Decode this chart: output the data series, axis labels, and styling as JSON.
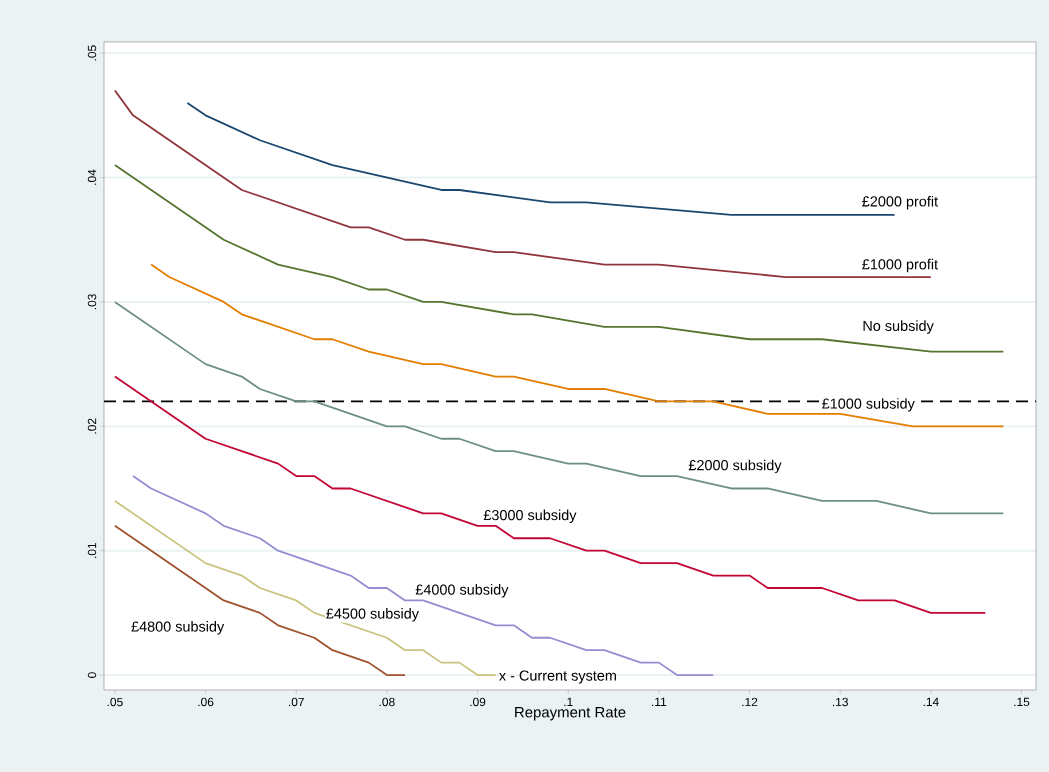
{
  "chart_data": {
    "type": "line",
    "xlabel": "Repayment Rate",
    "xlim": [
      0.0488,
      0.1516
    ],
    "ylim": [
      -0.0012,
      0.0509
    ],
    "xticks": [
      {
        "value": 0.05,
        "label": ".05"
      },
      {
        "value": 0.06,
        "label": ".06"
      },
      {
        "value": 0.07,
        "label": ".07"
      },
      {
        "value": 0.08,
        "label": ".08"
      },
      {
        "value": 0.09,
        "label": ".09"
      },
      {
        "value": 0.1,
        "label": ".1"
      },
      {
        "value": 0.11,
        "label": ".11"
      },
      {
        "value": 0.12,
        "label": ".12"
      },
      {
        "value": 0.13,
        "label": ".13"
      },
      {
        "value": 0.14,
        "label": ".14"
      },
      {
        "value": 0.15,
        "label": ".15"
      }
    ],
    "yticks": [
      0,
      {
        "value": 0.01,
        "label": ".01"
      },
      {
        "value": 0.02,
        "label": ".02"
      },
      {
        "value": 0.03,
        "label": ".03"
      },
      {
        "value": 0.04,
        "label": ".04"
      },
      {
        "value": 0.05,
        "label": ".05"
      }
    ],
    "grid": "y",
    "marker": "none",
    "line_style": "solid",
    "series": [
      {
        "name": "£2000 profit",
        "color": "#1a476f",
        "x": [
          0.058,
          0.06,
          0.066,
          0.074,
          0.086,
          0.088,
          0.098,
          0.102,
          0.118,
          0.136
        ],
        "values": [
          0.046,
          0.045,
          0.043,
          0.041,
          0.039,
          0.039,
          0.038,
          0.038,
          0.037,
          0.037
        ]
      },
      {
        "name": "£1000 profit",
        "color": "#90353b",
        "x": [
          0.05,
          0.052,
          0.064,
          0.076,
          0.078,
          0.082,
          0.084,
          0.092,
          0.094,
          0.104,
          0.11,
          0.124,
          0.14
        ],
        "values": [
          0.047,
          0.045,
          0.039,
          0.036,
          0.036,
          0.035,
          0.035,
          0.034,
          0.034,
          0.033,
          0.033,
          0.032,
          0.032
        ]
      },
      {
        "name": "No subsidy",
        "color": "#55752f",
        "x": [
          0.05,
          0.062,
          0.068,
          0.074,
          0.078,
          0.08,
          0.084,
          0.086,
          0.094,
          0.096,
          0.104,
          0.11,
          0.12,
          0.128,
          0.14,
          0.148
        ],
        "values": [
          0.041,
          0.035,
          0.033,
          0.032,
          0.031,
          0.031,
          0.03,
          0.03,
          0.029,
          0.029,
          0.028,
          0.028,
          0.027,
          0.027,
          0.026,
          0.026
        ]
      },
      {
        "name": "£1000 subsidy",
        "color": "#e37e00",
        "x": [
          0.054,
          0.056,
          0.062,
          0.064,
          0.072,
          0.074,
          0.078,
          0.084,
          0.086,
          0.092,
          0.094,
          0.1,
          0.104,
          0.11,
          0.116,
          0.122,
          0.13,
          0.138,
          0.148
        ],
        "values": [
          0.033,
          0.032,
          0.03,
          0.029,
          0.027,
          0.027,
          0.026,
          0.025,
          0.025,
          0.024,
          0.024,
          0.023,
          0.023,
          0.022,
          0.022,
          0.021,
          0.021,
          0.02,
          0.02
        ]
      },
      {
        "name": "£2000 subsidy",
        "color": "#6e8e84",
        "x": [
          0.05,
          0.06,
          0.064,
          0.066,
          0.07,
          0.072,
          0.08,
          0.082,
          0.086,
          0.088,
          0.092,
          0.094,
          0.1,
          0.102,
          0.108,
          0.112,
          0.118,
          0.122,
          0.128,
          0.134,
          0.14,
          0.148
        ],
        "values": [
          0.03,
          0.025,
          0.024,
          0.023,
          0.022,
          0.022,
          0.02,
          0.02,
          0.019,
          0.019,
          0.018,
          0.018,
          0.017,
          0.017,
          0.016,
          0.016,
          0.015,
          0.015,
          0.014,
          0.014,
          0.013,
          0.013
        ]
      },
      {
        "name": "£3000 subsidy",
        "color": "#c10534",
        "x": [
          0.05,
          0.06,
          0.068,
          0.07,
          0.072,
          0.074,
          0.076,
          0.084,
          0.086,
          0.09,
          0.092,
          0.094,
          0.098,
          0.102,
          0.104,
          0.108,
          0.112,
          0.116,
          0.12,
          0.122,
          0.128,
          0.132,
          0.136,
          0.14,
          0.146
        ],
        "values": [
          0.024,
          0.019,
          0.017,
          0.016,
          0.016,
          0.015,
          0.015,
          0.013,
          0.013,
          0.012,
          0.012,
          0.011,
          0.011,
          0.01,
          0.01,
          0.009,
          0.009,
          0.008,
          0.008,
          0.007,
          0.007,
          0.006,
          0.006,
          0.005,
          0.005
        ]
      },
      {
        "name": "£4000 subsidy",
        "color": "#938dd2",
        "x": [
          0.052,
          0.054,
          0.06,
          0.062,
          0.066,
          0.068,
          0.076,
          0.078,
          0.08,
          0.082,
          0.084,
          0.092,
          0.094,
          0.096,
          0.098,
          0.102,
          0.104,
          0.108,
          0.11,
          0.112,
          0.116
        ],
        "values": [
          0.016,
          0.015,
          0.013,
          0.012,
          0.011,
          0.01,
          0.008,
          0.007,
          0.007,
          0.006,
          0.006,
          0.004,
          0.004,
          0.003,
          0.003,
          0.002,
          0.002,
          0.001,
          0.001,
          0.0,
          0.0
        ]
      },
      {
        "name": "£4500 subsidy",
        "color": "#cac27e",
        "x": [
          0.05,
          0.06,
          0.064,
          0.066,
          0.07,
          0.072,
          0.08,
          0.082,
          0.084,
          0.086,
          0.088,
          0.09,
          0.092
        ],
        "values": [
          0.014,
          0.009,
          0.008,
          0.007,
          0.006,
          0.005,
          0.003,
          0.002,
          0.002,
          0.001,
          0.001,
          0.0,
          0.0
        ]
      },
      {
        "name": "£4800 subsidy",
        "color": "#a0522d",
        "x": [
          0.05,
          0.062,
          0.066,
          0.068,
          0.072,
          0.074,
          0.078,
          0.08,
          0.082
        ],
        "values": [
          0.012,
          0.006,
          0.005,
          0.004,
          0.003,
          0.002,
          0.001,
          0.0,
          0.0
        ]
      }
    ],
    "ref_lines": [
      {
        "axis": "y",
        "value": 0.022,
        "color": "#000000",
        "line_style": "dashed"
      }
    ],
    "annotations": [
      "x - Current system"
    ]
  }
}
